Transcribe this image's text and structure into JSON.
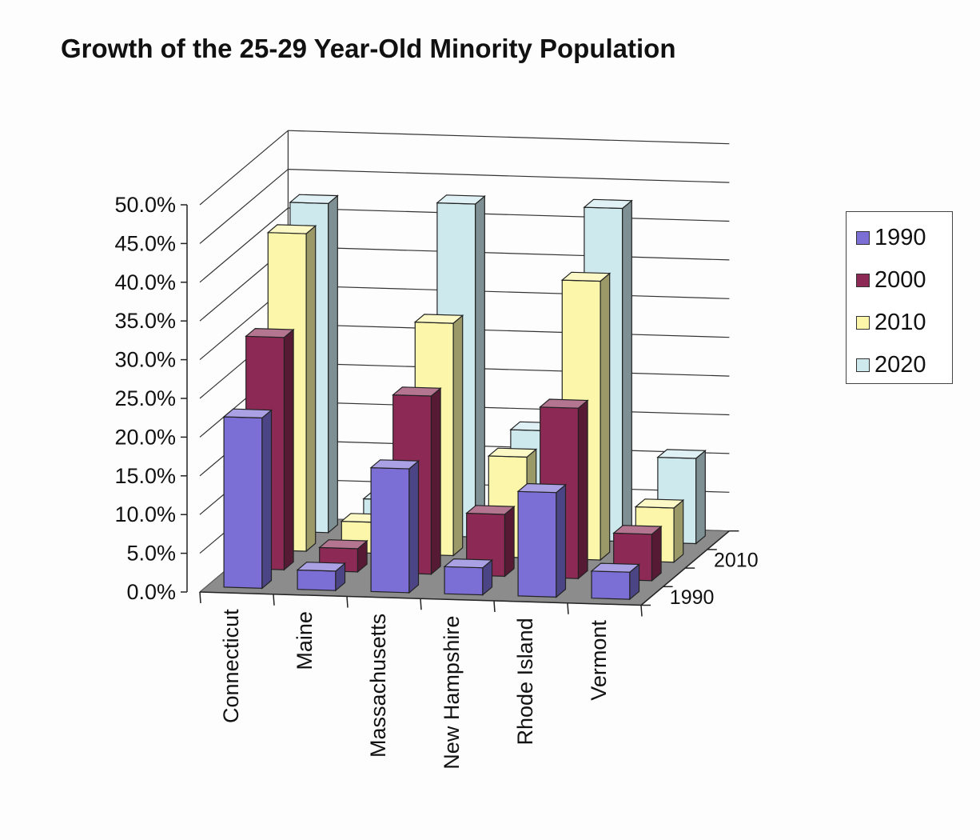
{
  "title": "Growth of the 25-29 Year-Old Minority Population",
  "legend": [
    {
      "label": "1990",
      "color": "#7b6fd6"
    },
    {
      "label": "2000",
      "color": "#8c2a55"
    },
    {
      "label": "2010",
      "color": "#fbf6a9"
    },
    {
      "label": "2020",
      "color": "#cde9ee"
    }
  ],
  "chart_data": {
    "type": "bar",
    "style": "3d-clustered",
    "title": "Growth of the 25-29 Year-Old Minority Population",
    "categories": [
      "Connecticut",
      "Maine",
      "Massachusetts",
      "New Hampshire",
      "Rhode Island",
      "Vermont"
    ],
    "series": [
      {
        "name": "1990",
        "color": "#7b6fd6",
        "values": [
          22.0,
          2.5,
          16.0,
          3.5,
          13.5,
          3.5
        ]
      },
      {
        "name": "2000",
        "color": "#8c2a55",
        "values": [
          30.0,
          3.0,
          23.0,
          8.0,
          22.0,
          6.0
        ]
      },
      {
        "name": "2010",
        "color": "#fbf6a9",
        "values": [
          41.0,
          4.0,
          30.0,
          13.0,
          36.0,
          7.0
        ]
      },
      {
        "name": "2020",
        "color": "#cde9ee",
        "values": [
          42.5,
          4.5,
          43.0,
          14.0,
          43.0,
          11.0
        ]
      }
    ],
    "y_ticks": [
      "0.0%",
      "5.0%",
      "10.0%",
      "15.0%",
      "20.0%",
      "25.0%",
      "30.0%",
      "35.0%",
      "40.0%",
      "45.0%",
      "50.0%"
    ],
    "depth_labels": [
      "1990",
      "2010"
    ],
    "ylim": [
      0,
      50
    ],
    "grid": true,
    "legend_position": "right"
  }
}
